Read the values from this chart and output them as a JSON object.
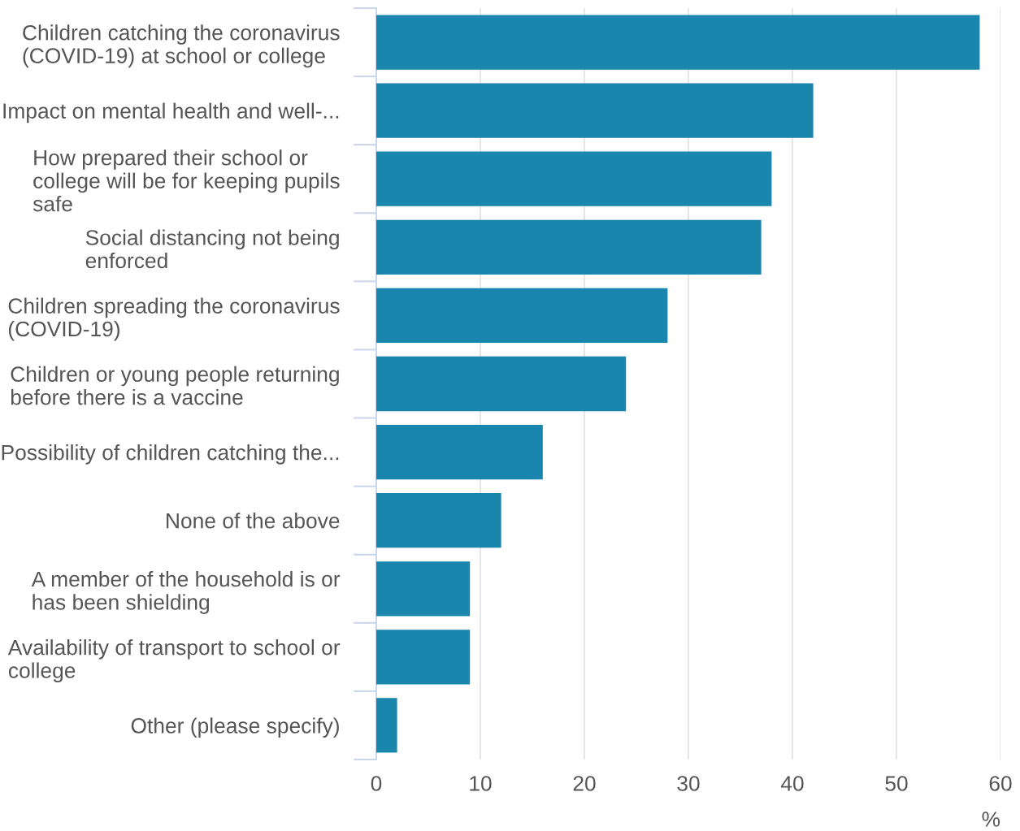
{
  "chart_data": {
    "type": "bar",
    "orientation": "horizontal",
    "xlabel": "%",
    "categories": [
      "Children catching the coronavirus\n(COVID-19) at school or college",
      "Impact on mental health and well-...",
      "How prepared their school or\ncollege will be for keeping pupils\nsafe",
      "Social distancing not being\nenforced",
      "Children spreading the coronavirus\n(COVID-19)",
      "Children or young people returning\nbefore there is a vaccine",
      "Possibility of children catching the...",
      "None of the above",
      "A member of the household is or\nhas been shielding",
      "Availability of transport to school or\ncollege",
      "Other (please specify)"
    ],
    "values": [
      58,
      42,
      38,
      37,
      28,
      24,
      16,
      12,
      9,
      9,
      2
    ],
    "color": "#1a85ad",
    "xlim": [
      0,
      60
    ],
    "xticks": [
      0,
      10,
      20,
      30,
      40,
      50,
      60
    ],
    "grid": "x"
  }
}
